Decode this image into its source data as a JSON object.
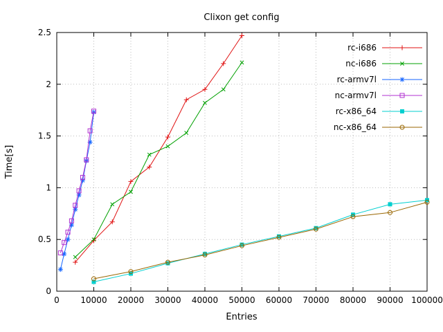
{
  "chart_data": {
    "type": "line",
    "title": "Clixon get config",
    "xlabel": "Entries",
    "ylabel": "Time[s]",
    "xlim": [
      0,
      100000
    ],
    "ylim": [
      0,
      2.5
    ],
    "grid": true,
    "legend_position": "top-right",
    "x_ticks": {
      "values": [
        0,
        10000,
        20000,
        30000,
        40000,
        50000,
        60000,
        70000,
        80000,
        90000,
        100000
      ],
      "labels": [
        "0",
        "10000",
        "20000",
        "30000",
        "40000",
        "50000",
        "60000",
        "70000",
        "80000",
        "90000",
        "100000"
      ]
    },
    "y_ticks": {
      "values": [
        0,
        0.5,
        1,
        1.5,
        2,
        2.5
      ],
      "labels": [
        "0",
        "0.5",
        "1",
        "1.5",
        "2",
        "2.5"
      ]
    },
    "series": [
      {
        "name": "rc-i686",
        "color": "#e01010",
        "marker": "plus",
        "x": [
          5000,
          10000,
          15000,
          20000,
          25000,
          30000,
          35000,
          40000,
          45000,
          50000
        ],
        "y": [
          0.28,
          0.49,
          0.67,
          1.06,
          1.2,
          1.49,
          1.85,
          1.95,
          2.2,
          2.47
        ]
      },
      {
        "name": "nc-i686",
        "color": "#00a000",
        "marker": "cross",
        "x": [
          5000,
          10000,
          15000,
          20000,
          25000,
          30000,
          35000,
          40000,
          45000,
          50000
        ],
        "y": [
          0.33,
          0.5,
          0.84,
          0.96,
          1.32,
          1.4,
          1.53,
          1.82,
          1.95,
          2.21
        ]
      },
      {
        "name": "rc-armv7l",
        "color": "#1565ff",
        "marker": "star",
        "x": [
          1000,
          2000,
          3000,
          4000,
          5000,
          6000,
          7000,
          8000,
          9000,
          10000
        ],
        "y": [
          0.21,
          0.36,
          0.5,
          0.64,
          0.79,
          0.93,
          1.07,
          1.26,
          1.44,
          1.73
        ]
      },
      {
        "name": "nc-armv7l",
        "color": "#b030d0",
        "marker": "square-open",
        "x": [
          1000,
          2000,
          3000,
          4000,
          5000,
          6000,
          7000,
          8000,
          9000,
          10000
        ],
        "y": [
          0.37,
          0.47,
          0.57,
          0.68,
          0.83,
          0.97,
          1.1,
          1.27,
          1.55,
          1.74
        ]
      },
      {
        "name": "rc-x86_64",
        "color": "#00cfcf",
        "marker": "square-filled",
        "x": [
          10000,
          20000,
          30000,
          40000,
          50000,
          60000,
          70000,
          80000,
          90000,
          100000
        ],
        "y": [
          0.09,
          0.17,
          0.27,
          0.36,
          0.45,
          0.53,
          0.61,
          0.74,
          0.84,
          0.88
        ]
      },
      {
        "name": "nc-x86_64",
        "color": "#996600",
        "marker": "circle-open",
        "x": [
          10000,
          20000,
          30000,
          40000,
          50000,
          60000,
          70000,
          80000,
          90000,
          100000
        ],
        "y": [
          0.12,
          0.19,
          0.28,
          0.35,
          0.44,
          0.52,
          0.6,
          0.72,
          0.76,
          0.86
        ]
      }
    ],
    "colors": {
      "border": "#000000",
      "grid": "#bbbbbb",
      "text": "#000000",
      "background": "#ffffff"
    }
  }
}
